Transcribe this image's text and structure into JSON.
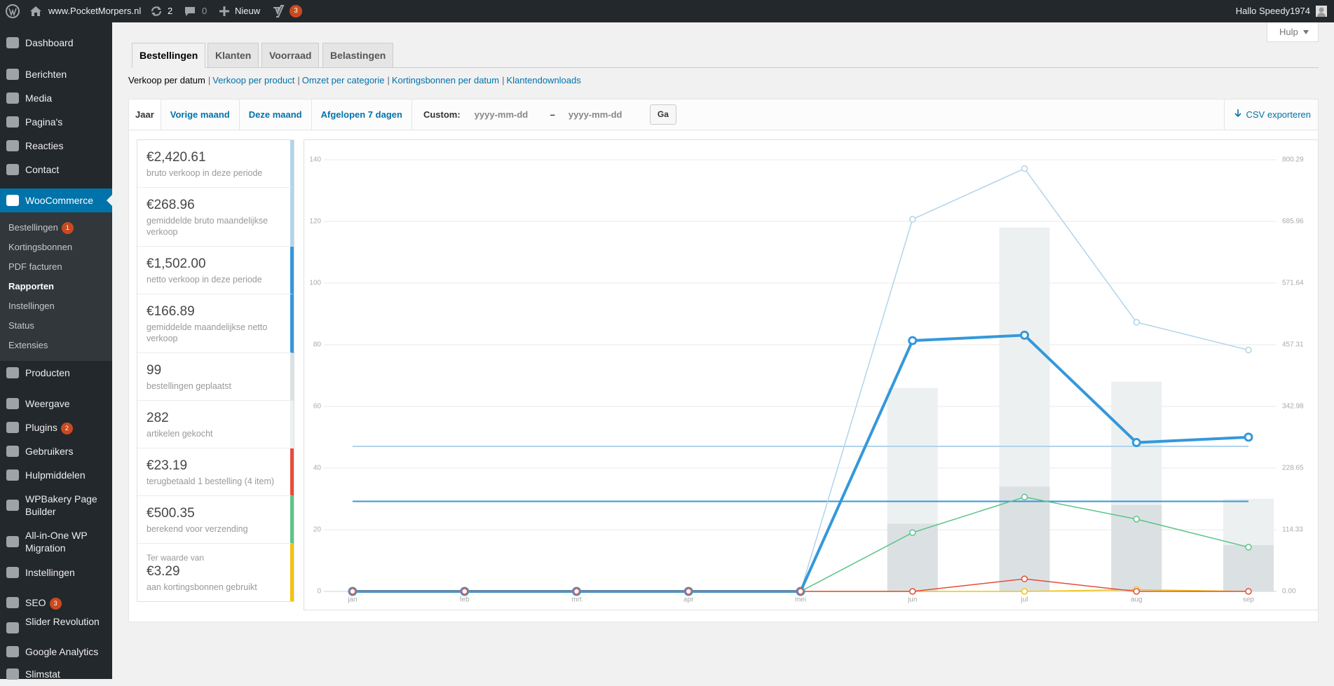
{
  "admin_bar": {
    "site_name": "www.PocketMorpers.nl",
    "updates": "2",
    "comments": "0",
    "new": "Nieuw",
    "seo_badge": "3",
    "greeting": "Hallo Speedy1974"
  },
  "help": "Hulp",
  "menu": [
    {
      "label": "Dashboard"
    },
    {
      "label": "Berichten"
    },
    {
      "label": "Media"
    },
    {
      "label": "Pagina's"
    },
    {
      "label": "Reacties"
    },
    {
      "label": "Contact"
    },
    {
      "label": "WooCommerce",
      "current": true,
      "submenu": [
        {
          "label": "Bestellingen",
          "badge": "1"
        },
        {
          "label": "Kortingsbonnen"
        },
        {
          "label": "PDF facturen"
        },
        {
          "label": "Rapporten",
          "current": true
        },
        {
          "label": "Instellingen"
        },
        {
          "label": "Status"
        },
        {
          "label": "Extensies"
        }
      ]
    },
    {
      "label": "Producten"
    },
    {
      "label": "Weergave"
    },
    {
      "label": "Plugins",
      "badge": "2"
    },
    {
      "label": "Gebruikers"
    },
    {
      "label": "Hulpmiddelen"
    },
    {
      "label": "WPBakery Page Builder"
    },
    {
      "label": "All-in-One WP Migration"
    },
    {
      "label": "Instellingen"
    },
    {
      "label": "SEO",
      "badge": "3"
    },
    {
      "label": "Slider Revolution"
    },
    {
      "label": "Google Analytics"
    },
    {
      "label": "Slimstat"
    }
  ],
  "tabs": {
    "items": [
      "Bestellingen",
      "Klanten",
      "Voorraad",
      "Belastingen"
    ],
    "active": 0
  },
  "subnav": {
    "items": [
      "Verkoop per datum",
      "Verkoop per product",
      "Omzet per categorie",
      "Kortingsbonnen per datum",
      "Klantendownloads"
    ],
    "active": 0,
    "separator": "|"
  },
  "ranges": {
    "items": [
      "Jaar",
      "Vorige maand",
      "Deze maand",
      "Afgelopen 7 dagen"
    ],
    "active": 0,
    "custom_label": "Custom:",
    "start_placeholder": "yyyy-mm-dd",
    "dash": "–",
    "end_placeholder": "yyyy-mm-dd",
    "submit": "Ga",
    "export": "CSV exporteren"
  },
  "stats": [
    {
      "value": "€2,420.61",
      "label": "bruto verkoop in deze periode",
      "color": "#b1d4ea"
    },
    {
      "value": "€268.96",
      "label": "gemiddelde bruto maandelijkse verkoop",
      "color": "#b1d4ea"
    },
    {
      "value": "€1,502.00",
      "label": "netto verkoop in deze periode",
      "color": "#3498db"
    },
    {
      "value": "€166.89",
      "label": "gemiddelde maandelijkse netto verkoop",
      "color": "#3498db"
    },
    {
      "value": "99",
      "label": "bestellingen geplaatst",
      "color": "#dbe1e3"
    },
    {
      "value": "282",
      "label": "artikelen gekocht",
      "color": "#ecf0f1"
    },
    {
      "value": "€23.19",
      "label": "terugbetaald 1 bestelling (4 item)",
      "color": "#e74c3c"
    },
    {
      "value": "€500.35",
      "label": "berekend voor verzending",
      "color": "#5cc488"
    },
    {
      "prefix": "Ter waarde van",
      "value": "€3.29",
      "label": "aan kortingsbonnen gebruikt",
      "color": "#f1c40f"
    }
  ],
  "chart": {
    "type": "bar-line",
    "categories": [
      "jan",
      "feb",
      "mrt",
      "apr",
      "mei",
      "jun",
      "jul",
      "aug",
      "sep"
    ],
    "ylim": [
      0,
      140
    ],
    "yticks": [
      0,
      20,
      40,
      60,
      80,
      100,
      120,
      140
    ],
    "y2lim": [
      0,
      800.29
    ],
    "y2ticks": [
      {
        "value": 0,
        "label": "0.00"
      },
      114.33,
      228.65,
      342.98,
      457.31,
      571.64,
      685.96,
      800.29
    ],
    "grid": true,
    "series": [
      {
        "type": "bar",
        "color": "#ecf0f1",
        "values": [
          0,
          0,
          0,
          0,
          0,
          66,
          118,
          68,
          30
        ]
      },
      {
        "type": "bar",
        "color": "#dbe1e3",
        "values": [
          0,
          0,
          0,
          0,
          0,
          22,
          34,
          28,
          15
        ]
      },
      {
        "type": "hline",
        "axis": "y2",
        "color": "#b1d4ea",
        "value": 268.96
      },
      {
        "type": "hline",
        "axis": "y2",
        "color": "#3498db",
        "value": 166.89
      },
      {
        "type": "line",
        "axis": "y2",
        "color": "#b1d4ea",
        "line_width": 1.5,
        "values": [
          0,
          0,
          0,
          0,
          0,
          690,
          784,
          499,
          447.6
        ]
      },
      {
        "type": "line",
        "axis": "y2",
        "color": "#3498db",
        "line_width": 4,
        "values": [
          0,
          0,
          0,
          0,
          0,
          465,
          475,
          276,
          286
        ]
      },
      {
        "type": "line",
        "axis": "y2",
        "color": "#5cc488",
        "line_width": 1.5,
        "values": [
          0,
          0,
          0,
          0,
          0,
          109,
          175,
          134,
          82
        ]
      },
      {
        "type": "line",
        "axis": "y2",
        "color": "#f1c40f",
        "line_width": 1.5,
        "values": [
          0,
          0,
          0,
          0,
          0,
          0,
          0,
          3.29,
          0
        ]
      },
      {
        "type": "line",
        "axis": "y2",
        "color": "#e74c3c",
        "line_width": 1.5,
        "values": [
          0,
          0,
          0,
          0,
          0,
          0,
          23.19,
          0,
          0
        ]
      }
    ]
  }
}
